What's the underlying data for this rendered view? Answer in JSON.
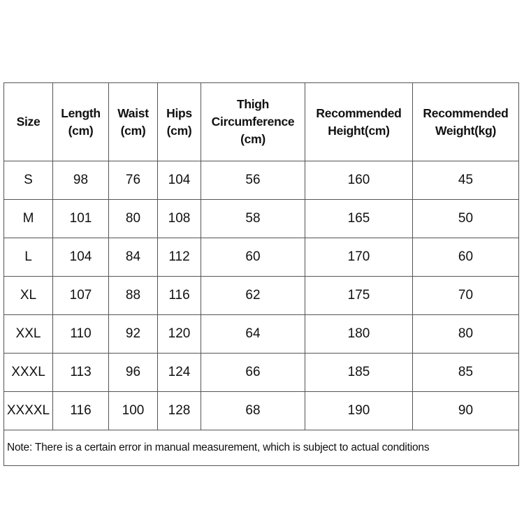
{
  "table": {
    "headers": [
      [
        "Size"
      ],
      [
        "Length",
        "(cm)"
      ],
      [
        "Waist",
        "(cm)"
      ],
      [
        "Hips",
        "(cm)"
      ],
      [
        "Thigh",
        "Circumference",
        "(cm)"
      ],
      [
        "Recommended",
        "Height(cm)"
      ],
      [
        "Recommended",
        "Weight(kg)"
      ]
    ],
    "rows": [
      [
        "S",
        "98",
        "76",
        "104",
        "56",
        "160",
        "45"
      ],
      [
        "M",
        "101",
        "80",
        "108",
        "58",
        "165",
        "50"
      ],
      [
        "L",
        "104",
        "84",
        "112",
        "60",
        "170",
        "60"
      ],
      [
        "XL",
        "107",
        "88",
        "116",
        "62",
        "175",
        "70"
      ],
      [
        "XXL",
        "110",
        "92",
        "120",
        "64",
        "180",
        "80"
      ],
      [
        "XXXL",
        "113",
        "96",
        "124",
        "66",
        "185",
        "85"
      ],
      [
        "XXXXL",
        "116",
        "100",
        "128",
        "68",
        "190",
        "90"
      ]
    ],
    "note": "Note: There is a certain error in manual measurement, which is subject to actual conditions"
  }
}
